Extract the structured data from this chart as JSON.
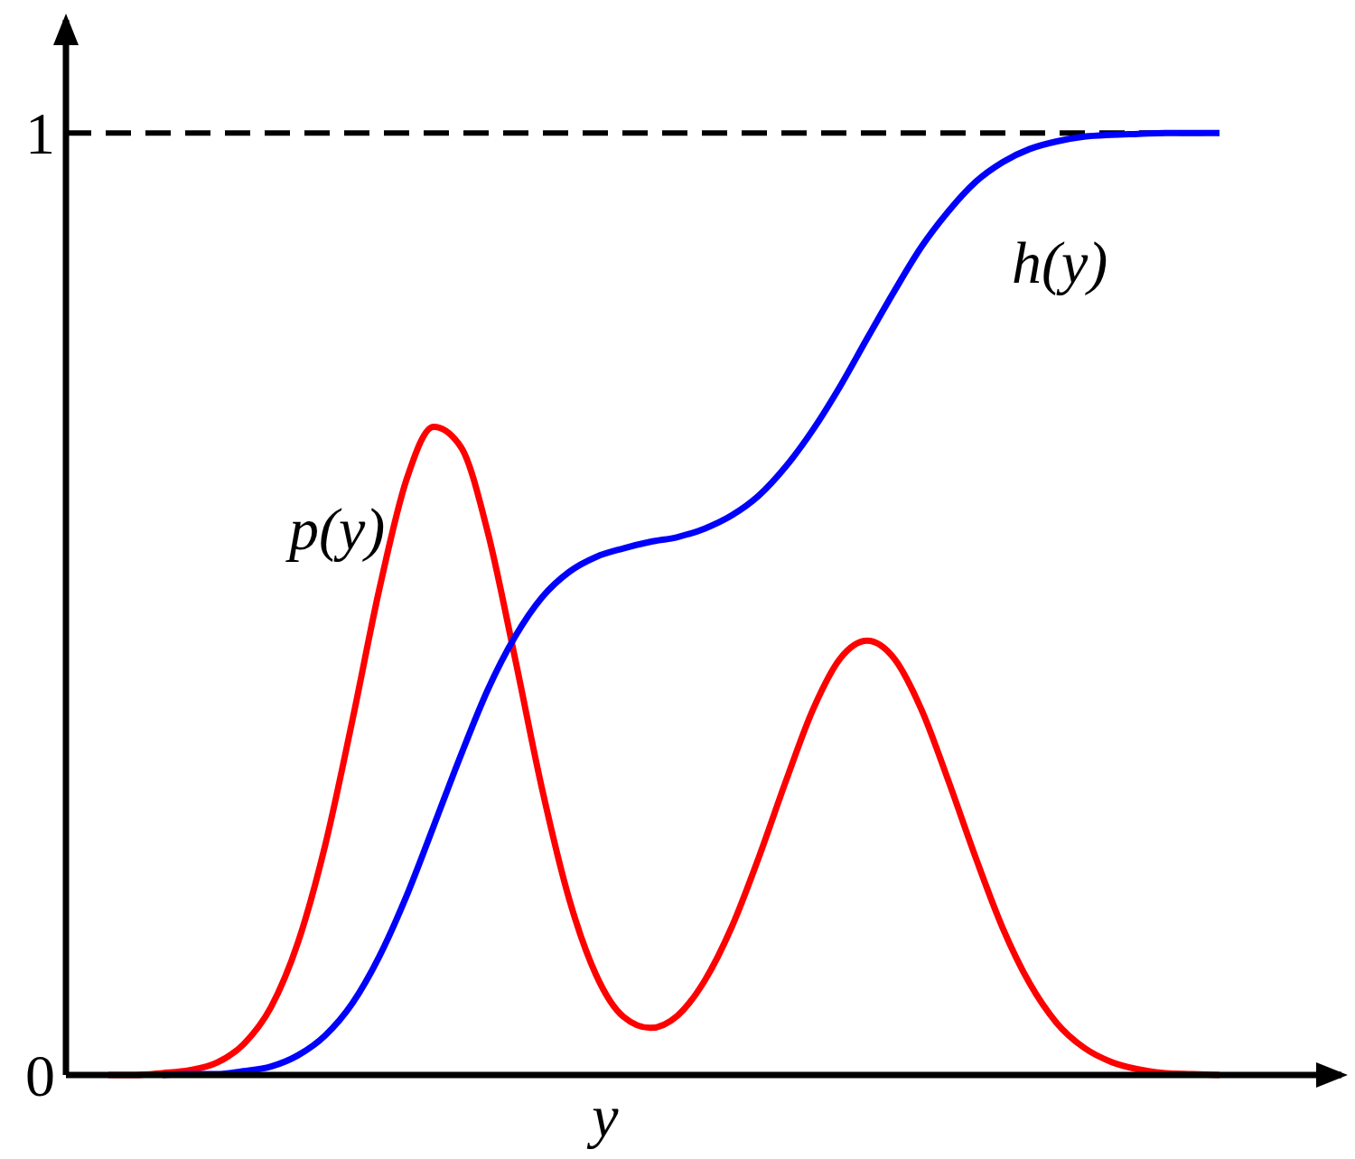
{
  "chart_data": {
    "type": "line",
    "xlabel": "y",
    "categories": [
      null,
      null,
      null,
      null,
      null,
      null,
      null,
      null,
      null,
      null,
      null,
      null,
      null,
      null,
      null,
      null,
      null,
      null,
      null,
      null,
      null,
      null,
      null,
      null,
      null,
      null,
      null,
      null,
      null,
      null,
      null,
      null,
      null,
      null,
      null,
      null,
      null,
      null,
      null,
      null,
      null,
      null
    ],
    "series": [
      {
        "name": "p(y)",
        "color": "#ff0000",
        "values": [
          0,
          0,
          0.002,
          0.005,
          0.013,
          0.033,
          0.072,
          0.141,
          0.244,
          0.376,
          0.516,
          0.632,
          0.688,
          0.667,
          0.576,
          0.443,
          0.304,
          0.187,
          0.106,
          0.062,
          0.05,
          0.063,
          0.1,
          0.157,
          0.231,
          0.312,
          0.388,
          0.442,
          0.461,
          0.442,
          0.388,
          0.312,
          0.231,
          0.156,
          0.097,
          0.055,
          0.029,
          0.014,
          0.006,
          0.002,
          0.001,
          0
        ]
      },
      {
        "name": "h(y)",
        "color": "#0000ff",
        "values": [
          null,
          null,
          0,
          0.001,
          0.001,
          0.004,
          0.009,
          0.021,
          0.042,
          0.076,
          0.126,
          0.19,
          0.264,
          0.339,
          0.409,
          0.465,
          0.507,
          0.534,
          0.55,
          0.559,
          0.566,
          0.571,
          0.58,
          0.594,
          0.615,
          0.646,
          0.685,
          0.731,
          0.782,
          0.832,
          0.879,
          0.917,
          0.948,
          0.969,
          0.983,
          0.991,
          0.996,
          0.998,
          0.999,
          1,
          1,
          1
        ]
      }
    ],
    "ylim": [
      0,
      1.12
    ],
    "yticks": [
      0,
      1
    ],
    "ref_lines": [
      {
        "axis": "y",
        "value": 1,
        "color": "#000000",
        "line_style": "dashed"
      }
    ],
    "legend": false,
    "grid": false,
    "marker": "none",
    "line_style": "solid"
  }
}
